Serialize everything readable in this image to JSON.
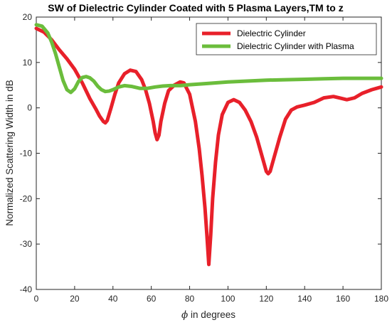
{
  "chart_data": {
    "type": "line",
    "title": "SW of Dielectric Cylinder Coated with 5 Plasma Layers,TM to z",
    "xlabel_symbol": "ϕ",
    "xlabel_text": " in degrees",
    "ylabel": "Normalized Scattering Width in dB",
    "xlim": [
      0,
      180
    ],
    "ylim": [
      -40,
      20
    ],
    "xticks": [
      0,
      20,
      40,
      60,
      80,
      100,
      120,
      140,
      160,
      180
    ],
    "yticks": [
      -40,
      -30,
      -20,
      -10,
      0,
      10,
      20
    ],
    "grid": false,
    "legend_position": "top-right",
    "series": [
      {
        "name": "Dielectric Cylinder",
        "color": "#e8202a",
        "x": [
          0,
          4,
          8,
          12,
          16,
          20,
          24,
          28,
          31,
          33,
          35,
          36,
          37,
          39,
          41,
          43,
          46,
          49,
          52,
          55,
          57,
          59,
          61,
          62,
          63,
          64,
          65,
          67,
          69,
          72,
          75,
          77,
          80,
          83,
          85,
          86.5,
          88,
          89,
          90,
          91,
          92,
          93.5,
          95,
          97,
          100,
          103,
          106,
          109,
          112,
          115,
          117,
          119,
          120,
          121,
          122,
          124,
          127,
          130,
          133,
          136,
          140,
          145,
          150,
          155,
          158,
          162,
          166,
          170,
          175,
          180
        ],
        "y": [
          17.5,
          16.7,
          15.0,
          12.8,
          10.8,
          8.5,
          5.5,
          2.0,
          -0.2,
          -1.8,
          -3.0,
          -3.3,
          -2.8,
          0.0,
          3.0,
          5.5,
          7.5,
          8.3,
          8.0,
          6.2,
          4.0,
          1.0,
          -3.0,
          -5.5,
          -7.0,
          -6.0,
          -3.0,
          1.0,
          3.8,
          5.0,
          5.7,
          5.5,
          3.0,
          -3.0,
          -9.0,
          -15.0,
          -22.0,
          -28.0,
          -34.5,
          -28.0,
          -20.0,
          -12.0,
          -6.0,
          -1.5,
          1.2,
          1.8,
          1.2,
          -0.5,
          -3.0,
          -6.5,
          -9.5,
          -12.5,
          -14.0,
          -14.5,
          -14.0,
          -11.0,
          -6.5,
          -2.5,
          -0.5,
          0.2,
          0.6,
          1.2,
          2.2,
          2.5,
          2.2,
          1.8,
          2.2,
          3.2,
          4.0,
          4.6
        ]
      },
      {
        "name": "Dielectric Cylinder with Plasma",
        "color": "#6bbd3c",
        "x": [
          0,
          3,
          6,
          8,
          10,
          12,
          14,
          16,
          18,
          20,
          22,
          24,
          26,
          28,
          30,
          32,
          34,
          36,
          38,
          40,
          43,
          46,
          50,
          54,
          58,
          62,
          66,
          70,
          75,
          80,
          90,
          100,
          110,
          120,
          130,
          140,
          150,
          160,
          170,
          180
        ],
        "y": [
          18.3,
          18.0,
          16.5,
          14.5,
          12.0,
          9.0,
          6.0,
          4.0,
          3.4,
          4.2,
          5.8,
          6.7,
          6.9,
          6.6,
          5.9,
          4.8,
          4.0,
          3.6,
          3.7,
          4.0,
          4.6,
          4.9,
          4.7,
          4.3,
          4.3,
          4.6,
          4.8,
          4.9,
          4.9,
          5.1,
          5.4,
          5.7,
          5.9,
          6.1,
          6.2,
          6.3,
          6.4,
          6.5,
          6.5,
          6.5
        ]
      }
    ]
  }
}
